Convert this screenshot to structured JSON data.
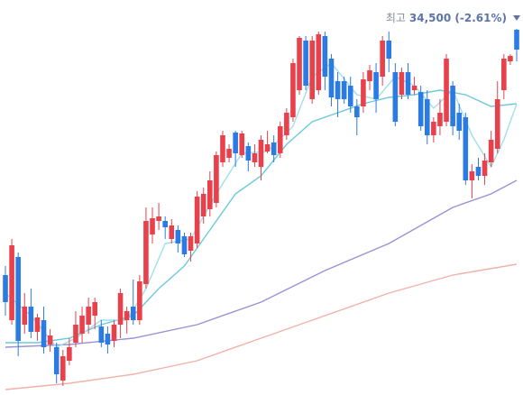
{
  "chart_data": {
    "type": "candlestick",
    "ylim": [
      26380,
      35140
    ],
    "colors": {
      "up": "#e8414b",
      "down": "#2b7be4"
    },
    "open": [
      29040,
      28040,
      29440,
      27940,
      28340,
      27780,
      28040,
      27500,
      27440,
      26700,
      27140,
      27540,
      27740,
      27940,
      28140,
      27900,
      27740,
      27580,
      27940,
      28040,
      28340,
      28040,
      28840,
      29940,
      30240,
      30240,
      29840,
      30040,
      29900,
      29580,
      29740,
      30340,
      30500,
      30640,
      31540,
      31640,
      32200,
      31700,
      31900,
      31540,
      31440,
      31780,
      31980,
      31740,
      32140,
      32540,
      33140,
      34240,
      32940,
      33140,
      34340,
      33840,
      33340,
      33340,
      33240,
      32780,
      32780,
      33340,
      33540,
      33440,
      34240,
      33540,
      33040,
      33540,
      33140,
      33100,
      32940,
      32140,
      32340,
      32440,
      33240,
      32640,
      32540,
      31140,
      31440,
      31240,
      31540,
      31840,
      33140,
      33780,
      34480
    ],
    "high": [
      29240,
      29840,
      29540,
      28640,
      28740,
      28180,
      28340,
      27840,
      27540,
      27380,
      27640,
      28240,
      28340,
      28540,
      28540,
      28040,
      27900,
      28040,
      28740,
      28340,
      28940,
      29040,
      30540,
      30540,
      30640,
      30340,
      30280,
      30140,
      29980,
      29980,
      30900,
      30980,
      31340,
      31780,
      32240,
      31940,
      32240,
      32240,
      31980,
      31940,
      32140,
      32240,
      32140,
      32440,
      32740,
      33840,
      34340,
      34340,
      34340,
      34440,
      34440,
      33940,
      33540,
      33440,
      33440,
      32940,
      33540,
      33700,
      33740,
      34340,
      34440,
      33740,
      33640,
      33740,
      33440,
      33240,
      33140,
      32540,
      32940,
      33940,
      33340,
      32840,
      32640,
      31500,
      31640,
      31740,
      32240,
      33340,
      33940,
      33940,
      34500
    ],
    "low": [
      28140,
      27940,
      27240,
      27740,
      27640,
      27580,
      27300,
      27340,
      26640,
      26580,
      27040,
      27440,
      27540,
      27740,
      27840,
      27440,
      27300,
      27440,
      27640,
      27740,
      27940,
      27940,
      28740,
      29740,
      30040,
      29840,
      29740,
      29540,
      29440,
      29340,
      29640,
      30180,
      30340,
      30540,
      31440,
      31540,
      31440,
      31640,
      31340,
      31440,
      31140,
      31740,
      31540,
      31640,
      32040,
      32440,
      33040,
      33140,
      32840,
      33040,
      33140,
      32780,
      32540,
      32840,
      32640,
      32140,
      32640,
      33140,
      32640,
      33240,
      33540,
      32340,
      32940,
      32940,
      33040,
      32240,
      31940,
      31980,
      32140,
      32340,
      32140,
      32040,
      31040,
      30740,
      31140,
      31040,
      31440,
      31740,
      32940,
      33700,
      33780
    ],
    "close": [
      28440,
      29700,
      27580,
      28340,
      27780,
      28100,
      27440,
      27700,
      26840,
      27240,
      27440,
      27940,
      28140,
      28340,
      28440,
      27540,
      27500,
      27940,
      28640,
      28240,
      28040,
      28900,
      30240,
      30300,
      30340,
      30100,
      30140,
      29740,
      29500,
      29900,
      30780,
      30840,
      31140,
      31700,
      32140,
      31840,
      31740,
      32180,
      31580,
      31740,
      32040,
      31940,
      31700,
      32340,
      32640,
      33740,
      34300,
      33240,
      34240,
      34380,
      33440,
      32980,
      32940,
      32940,
      32780,
      32540,
      33380,
      33580,
      32940,
      34240,
      33840,
      32440,
      33540,
      33040,
      33240,
      32340,
      32140,
      32440,
      32640,
      33840,
      32340,
      32240,
      31140,
      31340,
      31240,
      31580,
      32040,
      32940,
      33840,
      33900,
      34040
    ],
    "series": [
      {
        "color": "#f2b1a9",
        "x": [
          0,
          10,
          20,
          30,
          40,
          50,
          60,
          70,
          80
        ],
        "values": [
          26500,
          26640,
          26840,
          27140,
          27640,
          28140,
          28640,
          29040,
          29280
        ]
      },
      {
        "color": "#9c90d6",
        "x": [
          0,
          10,
          20,
          30,
          40,
          50,
          60,
          70,
          76,
          80
        ],
        "values": [
          27440,
          27500,
          27640,
          27940,
          28440,
          29140,
          29740,
          30540,
          30840,
          31140
        ]
      },
      {
        "color": "#6cc9dc",
        "x": [
          0,
          5,
          10,
          15,
          20,
          24,
          28,
          32,
          36,
          40,
          44,
          48,
          52,
          56,
          60,
          64,
          68,
          72,
          76,
          80
        ],
        "values": [
          27540,
          27540,
          27640,
          27940,
          28140,
          28740,
          29240,
          30040,
          30840,
          31240,
          31940,
          32440,
          32640,
          32840,
          32980,
          33040,
          33140,
          33040,
          32780,
          32840
        ]
      },
      {
        "color": "#9fe0ea",
        "x": [
          0,
          4,
          8,
          11,
          15,
          19,
          22,
          25,
          29,
          33,
          37,
          41,
          45,
          48,
          51,
          55,
          58,
          61,
          64,
          67,
          70,
          73,
          76,
          78,
          80
        ],
        "values": [
          28640,
          28140,
          27440,
          27640,
          28040,
          28040,
          28740,
          29740,
          29840,
          30840,
          31740,
          31780,
          32340,
          33440,
          33740,
          33040,
          32940,
          33440,
          33240,
          32740,
          33140,
          32140,
          31440,
          32040,
          32840
        ]
      }
    ],
    "annotation": {
      "prefix": "최고",
      "value": 34500,
      "label": "34,500 (-2.61%)"
    }
  }
}
